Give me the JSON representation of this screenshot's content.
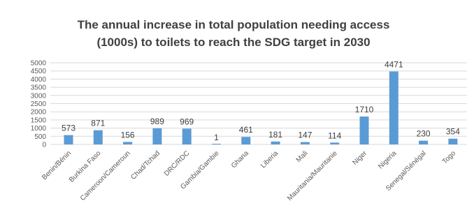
{
  "chart_data": {
    "type": "bar",
    "title_lines": [
      "The annual increase in total population needing access",
      "(1000s) to toilets to reach the SDG target in 2030"
    ],
    "categories": [
      "Benin/Bénin",
      "Burkina Faso",
      "Cameroon/Cameroun",
      "Chad/Tchad",
      "DRC/RDC",
      "Gambia/Gambie",
      "Ghana",
      "Liberia",
      "Mali",
      "Mauritania/Mauritanie",
      "Niger",
      "Nigeria",
      "Senegal/Sénégal",
      "Togo"
    ],
    "values": [
      573,
      871,
      156,
      989,
      969,
      1,
      461,
      181,
      147,
      114,
      1710,
      4471,
      230,
      354
    ],
    "ylim": [
      0,
      5000
    ],
    "yticks": [
      0,
      500,
      1000,
      1500,
      2000,
      2500,
      3000,
      3500,
      4000,
      4500,
      5000
    ],
    "grid": true,
    "bar_color": "#5b9bd5",
    "data_labels": true,
    "xlabel": "",
    "ylabel": ""
  }
}
